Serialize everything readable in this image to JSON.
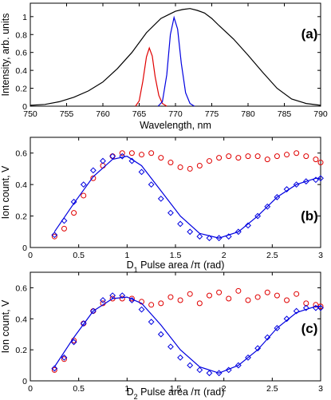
{
  "chart_data": [
    {
      "type": "line",
      "panel_label": "(a)",
      "xlabel": "Wavelength, nm",
      "ylabel": "Intensity, arb. units",
      "xlim": [
        750,
        790
      ],
      "ylim": [
        0,
        1.15
      ],
      "xticks": [
        "750",
        "755",
        "760",
        "765",
        "770",
        "775",
        "780",
        "785",
        "790"
      ],
      "yticks": [
        "0",
        "0.2",
        "0.4",
        "0.6",
        "0.8",
        "1"
      ],
      "grid": false,
      "series": [
        {
          "color": "#000000",
          "x": [
            750,
            752,
            754,
            756,
            758,
            760,
            762,
            764,
            766,
            768,
            769,
            770,
            771,
            772,
            773,
            774,
            775,
            776,
            778,
            780,
            782,
            784,
            786,
            788,
            790
          ],
          "y": [
            0.01,
            0.02,
            0.05,
            0.1,
            0.17,
            0.27,
            0.42,
            0.6,
            0.82,
            0.98,
            1.02,
            1.06,
            1.08,
            1.09,
            1.07,
            1.04,
            0.98,
            0.9,
            0.75,
            0.57,
            0.38,
            0.2,
            0.08,
            0.03,
            0.01
          ]
        },
        {
          "color": "#e00000",
          "x": [
            764.5,
            765,
            765.5,
            766,
            766.4,
            766.8,
            767.2,
            767.7,
            768.2,
            768.8
          ],
          "y": [
            0.0,
            0.06,
            0.28,
            0.55,
            0.65,
            0.56,
            0.33,
            0.12,
            0.03,
            0.0
          ]
        },
        {
          "color": "#0000e0",
          "x": [
            767.6,
            768.2,
            768.8,
            769.3,
            769.8,
            770.3,
            770.8,
            771.4,
            772,
            772.6
          ],
          "y": [
            0.0,
            0.05,
            0.35,
            0.8,
            0.99,
            0.86,
            0.48,
            0.15,
            0.03,
            0.0
          ]
        }
      ]
    },
    {
      "type": "scatter",
      "panel_label": "(b)",
      "xlabel_sub": "1",
      "xlabel_main": "D",
      "xlabel_rest": " Pulse area /π (rad)",
      "ylabel": "Ion count, V",
      "xlim": [
        0,
        3
      ],
      "ylim": [
        0,
        0.7
      ],
      "xticks": [
        "0",
        "0.5",
        "1",
        "1.5",
        "2",
        "2.5",
        "3"
      ],
      "yticks": [
        "0",
        "0.2",
        "0.4",
        "0.6"
      ],
      "grid": false,
      "series": [
        {
          "marker": "circle",
          "color": "#e00000",
          "x": [
            0.25,
            0.35,
            0.45,
            0.55,
            0.65,
            0.75,
            0.85,
            0.95,
            1.05,
            1.15,
            1.25,
            1.35,
            1.45,
            1.55,
            1.65,
            1.75,
            1.85,
            1.95,
            2.05,
            2.15,
            2.25,
            2.35,
            2.45,
            2.55,
            2.65,
            2.75,
            2.85,
            2.95,
            3.0
          ],
          "y": [
            0.07,
            0.12,
            0.22,
            0.33,
            0.44,
            0.52,
            0.58,
            0.6,
            0.6,
            0.59,
            0.6,
            0.57,
            0.54,
            0.51,
            0.5,
            0.52,
            0.55,
            0.57,
            0.58,
            0.57,
            0.58,
            0.58,
            0.56,
            0.58,
            0.59,
            0.6,
            0.58,
            0.56,
            0.54
          ]
        },
        {
          "marker": "diamond",
          "color": "#0000e0",
          "x": [
            0.25,
            0.35,
            0.45,
            0.55,
            0.65,
            0.75,
            0.85,
            0.95,
            1.05,
            1.15,
            1.25,
            1.35,
            1.45,
            1.55,
            1.65,
            1.75,
            1.85,
            1.95,
            2.05,
            2.15,
            2.25,
            2.35,
            2.45,
            2.55,
            2.65,
            2.75,
            2.85,
            2.95,
            3.0
          ],
          "y": [
            0.08,
            0.17,
            0.29,
            0.4,
            0.49,
            0.55,
            0.58,
            0.58,
            0.55,
            0.48,
            0.4,
            0.31,
            0.22,
            0.15,
            0.1,
            0.07,
            0.06,
            0.06,
            0.07,
            0.1,
            0.14,
            0.2,
            0.26,
            0.32,
            0.37,
            0.4,
            0.42,
            0.43,
            0.44
          ]
        },
        {
          "marker": "line",
          "color": "#0000e0",
          "x": [
            0.25,
            0.45,
            0.65,
            0.85,
            1.0,
            1.15,
            1.35,
            1.55,
            1.75,
            1.95,
            2.15,
            2.35,
            2.55,
            2.75,
            2.95,
            3.0
          ],
          "y": [
            0.1,
            0.28,
            0.45,
            0.56,
            0.58,
            0.52,
            0.36,
            0.2,
            0.09,
            0.06,
            0.1,
            0.2,
            0.32,
            0.4,
            0.44,
            0.44
          ]
        }
      ]
    },
    {
      "type": "scatter",
      "panel_label": "(c)",
      "xlabel_sub": "2",
      "xlabel_main": "D",
      "xlabel_rest": " Pulse area /π (rad)",
      "ylabel": "Ion count, V",
      "xlim": [
        0,
        3
      ],
      "ylim": [
        0,
        0.7
      ],
      "xticks": [
        "0",
        "0.5",
        "1",
        "1.5",
        "2",
        "2.5",
        "3"
      ],
      "yticks": [
        "0",
        "0.2",
        "0.4",
        "0.6"
      ],
      "grid": false,
      "series": [
        {
          "marker": "circle",
          "color": "#e00000",
          "x": [
            0.25,
            0.35,
            0.45,
            0.55,
            0.65,
            0.75,
            0.85,
            0.95,
            1.05,
            1.15,
            1.25,
            1.35,
            1.45,
            1.55,
            1.65,
            1.75,
            1.85,
            1.95,
            2.05,
            2.15,
            2.25,
            2.35,
            2.45,
            2.55,
            2.65,
            2.75,
            2.85,
            2.95,
            3.0
          ],
          "y": [
            0.07,
            0.14,
            0.26,
            0.37,
            0.45,
            0.5,
            0.53,
            0.53,
            0.53,
            0.51,
            0.49,
            0.5,
            0.54,
            0.52,
            0.56,
            0.5,
            0.55,
            0.57,
            0.53,
            0.58,
            0.52,
            0.54,
            0.57,
            0.55,
            0.52,
            0.56,
            0.5,
            0.49,
            0.48
          ]
        },
        {
          "marker": "diamond",
          "color": "#0000e0",
          "x": [
            0.25,
            0.35,
            0.45,
            0.55,
            0.65,
            0.75,
            0.85,
            0.95,
            1.05,
            1.15,
            1.25,
            1.35,
            1.45,
            1.55,
            1.65,
            1.75,
            1.85,
            1.95,
            2.05,
            2.15,
            2.25,
            2.35,
            2.45,
            2.55,
            2.65,
            2.75,
            2.85,
            2.95,
            3.0
          ],
          "y": [
            0.08,
            0.15,
            0.25,
            0.37,
            0.45,
            0.52,
            0.55,
            0.55,
            0.52,
            0.46,
            0.38,
            0.3,
            0.22,
            0.15,
            0.1,
            0.07,
            0.05,
            0.05,
            0.07,
            0.1,
            0.15,
            0.21,
            0.28,
            0.34,
            0.4,
            0.45,
            0.47,
            0.47,
            0.47
          ]
        },
        {
          "marker": "line",
          "color": "#0000e0",
          "x": [
            0.25,
            0.45,
            0.65,
            0.85,
            1.0,
            1.15,
            1.35,
            1.55,
            1.75,
            1.95,
            2.15,
            2.35,
            2.55,
            2.75,
            2.95,
            3.0
          ],
          "y": [
            0.09,
            0.28,
            0.45,
            0.53,
            0.54,
            0.5,
            0.36,
            0.2,
            0.09,
            0.05,
            0.1,
            0.2,
            0.34,
            0.44,
            0.48,
            0.48
          ]
        }
      ]
    }
  ]
}
